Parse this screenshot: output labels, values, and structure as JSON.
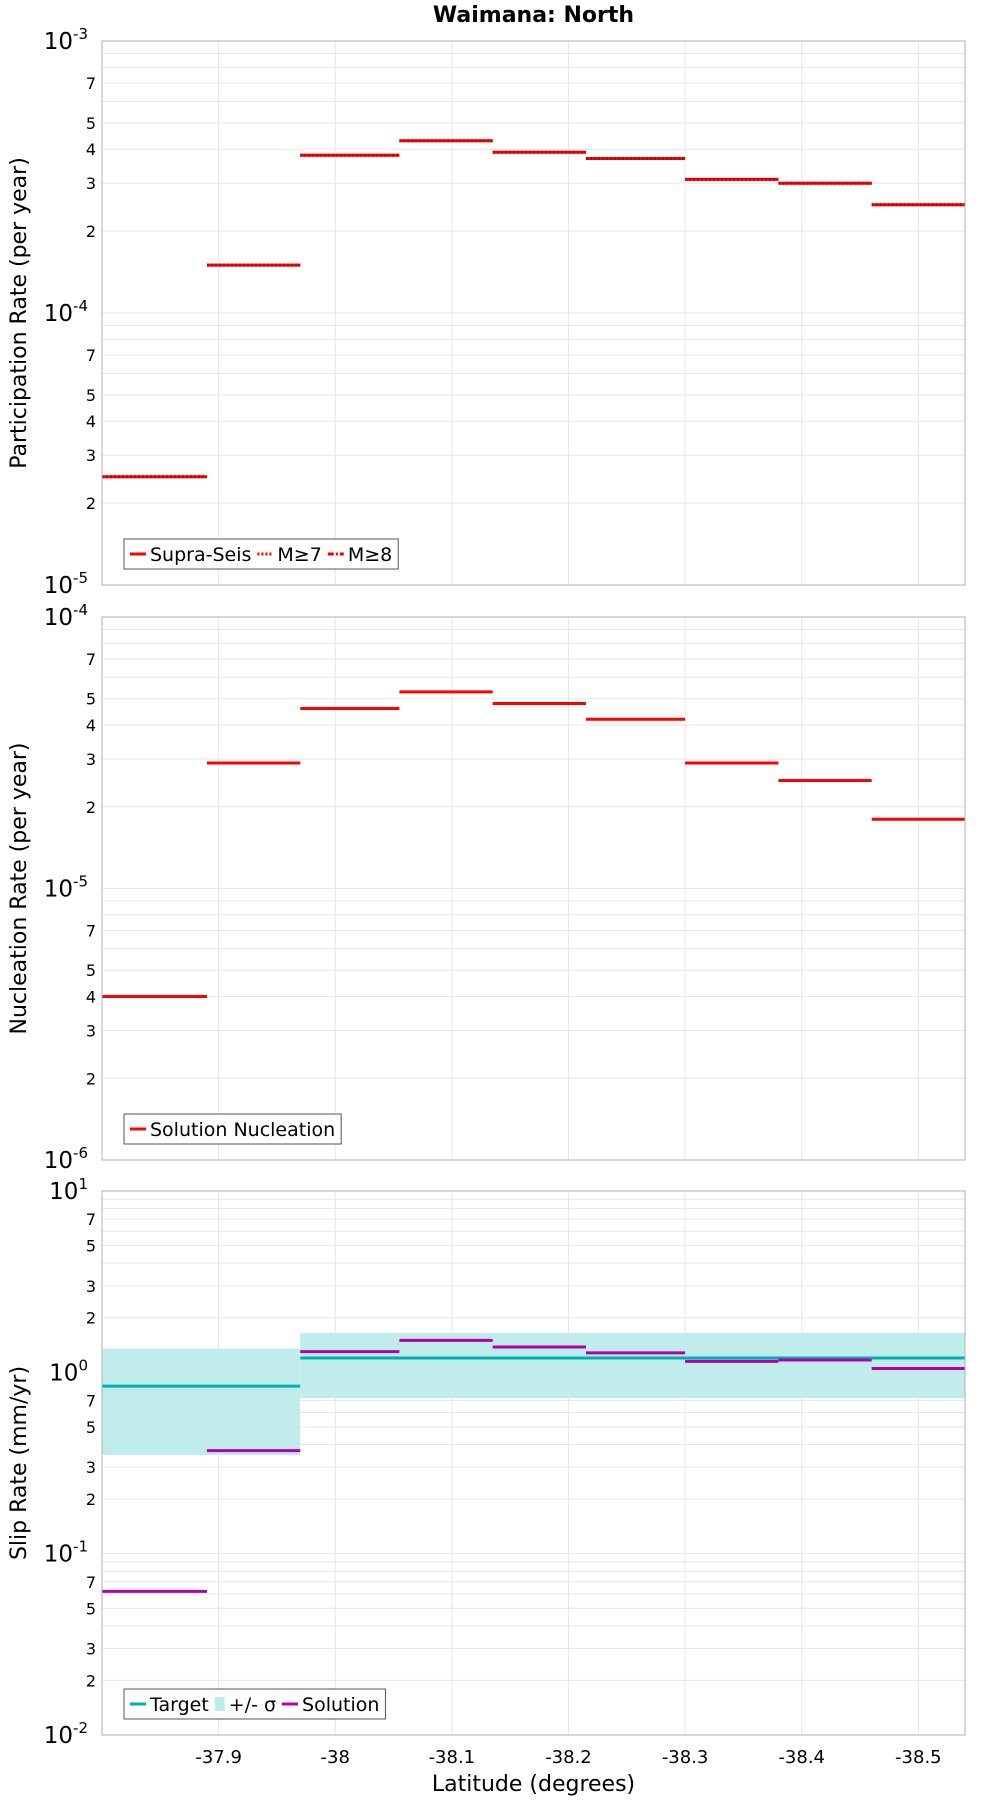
{
  "chart_data": [
    {
      "type": "line",
      "title": "Waimana: North",
      "ylabel": "Participation Rate (per year)",
      "yscale": "log",
      "ylim": [
        1e-05,
        0.001
      ],
      "xlim": [
        -37.8,
        -38.54
      ],
      "x_reversed": true,
      "yticks_major": [
        {
          "base": "10",
          "exp": "-5"
        },
        {
          "base": "10",
          "exp": "-4"
        },
        {
          "base": "10",
          "exp": "-3"
        }
      ],
      "yticks_minor": [
        "2",
        "3",
        "4",
        "5",
        "7"
      ],
      "legend": {
        "position": "bottom-left",
        "items": [
          {
            "label": "Supra-Seis",
            "style": "solid"
          },
          {
            "label": "M≥7",
            "style": "dotted"
          },
          {
            "label": "M≥8",
            "style": "dash-dot"
          }
        ]
      },
      "bin_edges": [
        -37.8,
        -37.89,
        -37.97,
        -38.055,
        -38.135,
        -38.215,
        -38.3,
        -38.38,
        -38.46,
        -38.54
      ],
      "series": [
        {
          "name": "Supra-Seis",
          "color": "#ff0000",
          "style": "solid",
          "values": [
            2.5e-05,
            0.00015,
            0.00038,
            0.00043,
            0.00039,
            0.00037,
            0.00031,
            0.0003,
            0.00025
          ]
        },
        {
          "name": "M≥7",
          "color": "#ff0000",
          "style": "dotted",
          "values": [
            2.5e-05,
            0.00015,
            0.00038,
            0.00043,
            0.00039,
            0.00037,
            0.00031,
            0.0003,
            0.00025
          ]
        }
      ]
    },
    {
      "type": "line",
      "ylabel": "Nucleation Rate (per year)",
      "yscale": "log",
      "ylim": [
        1e-06,
        0.0001
      ],
      "xlim": [
        -37.8,
        -38.54
      ],
      "x_reversed": true,
      "yticks_major": [
        {
          "base": "10",
          "exp": "-6"
        },
        {
          "base": "10",
          "exp": "-5"
        },
        {
          "base": "10",
          "exp": "-4"
        }
      ],
      "yticks_minor": [
        "2",
        "3",
        "4",
        "5",
        "7"
      ],
      "legend": {
        "position": "bottom-left",
        "items": [
          {
            "label": "Solution Nucleation",
            "style": "solid"
          }
        ]
      },
      "bin_edges": [
        -37.8,
        -37.89,
        -37.97,
        -38.055,
        -38.135,
        -38.215,
        -38.3,
        -38.38,
        -38.46,
        -38.54
      ],
      "series": [
        {
          "name": "Solution Nucleation",
          "color": "#ff0000",
          "style": "solid",
          "values": [
            4e-06,
            2.9e-05,
            4.6e-05,
            5.3e-05,
            4.8e-05,
            4.2e-05,
            2.9e-05,
            2.5e-05,
            1.8e-05
          ]
        }
      ]
    },
    {
      "type": "line",
      "xlabel": "Latitude (degrees)",
      "ylabel": "Slip Rate (mm/yr)",
      "yscale": "log",
      "ylim": [
        0.01,
        10
      ],
      "xlim": [
        -37.8,
        -38.54
      ],
      "x_reversed": true,
      "yticks_major": [
        {
          "base": "10",
          "exp": "-2"
        },
        {
          "base": "10",
          "exp": "-1"
        },
        {
          "base": "10",
          "exp": "0"
        },
        {
          "base": "10",
          "exp": "1"
        }
      ],
      "yticks_minor": [
        "2",
        "3",
        "5",
        "7"
      ],
      "xticks": [
        "-37.9",
        "-38",
        "-38.1",
        "-38.2",
        "-38.3",
        "-38.4",
        "-38.5"
      ],
      "xtick_values": [
        -37.9,
        -38.0,
        -38.1,
        -38.2,
        -38.3,
        -38.4,
        -38.5
      ],
      "legend": {
        "position": "bottom-left",
        "items": [
          {
            "label": "Target",
            "style": "solid"
          },
          {
            "label": "+/- σ",
            "style": "band"
          },
          {
            "label": "Solution",
            "style": "solid"
          }
        ]
      },
      "target": {
        "name": "Target",
        "color": "#00b0b0",
        "segments": [
          {
            "x": [
              -37.8,
              -37.97
            ],
            "value": 0.84,
            "band": [
              0.35,
              1.35
            ]
          },
          {
            "x": [
              -37.97,
              -38.54
            ],
            "value": 1.2,
            "band": [
              0.72,
              1.65
            ]
          }
        ]
      },
      "sigma_band_color": "#c0ecec",
      "solution": {
        "name": "Solution",
        "color": "#b000b0",
        "bin_edges": [
          -37.8,
          -37.89,
          -37.97,
          -38.055,
          -38.135,
          -38.215,
          -38.3,
          -38.38,
          -38.46,
          -38.54
        ],
        "values": [
          0.062,
          0.37,
          1.3,
          1.5,
          1.38,
          1.28,
          1.15,
          1.17,
          1.05
        ]
      }
    }
  ]
}
